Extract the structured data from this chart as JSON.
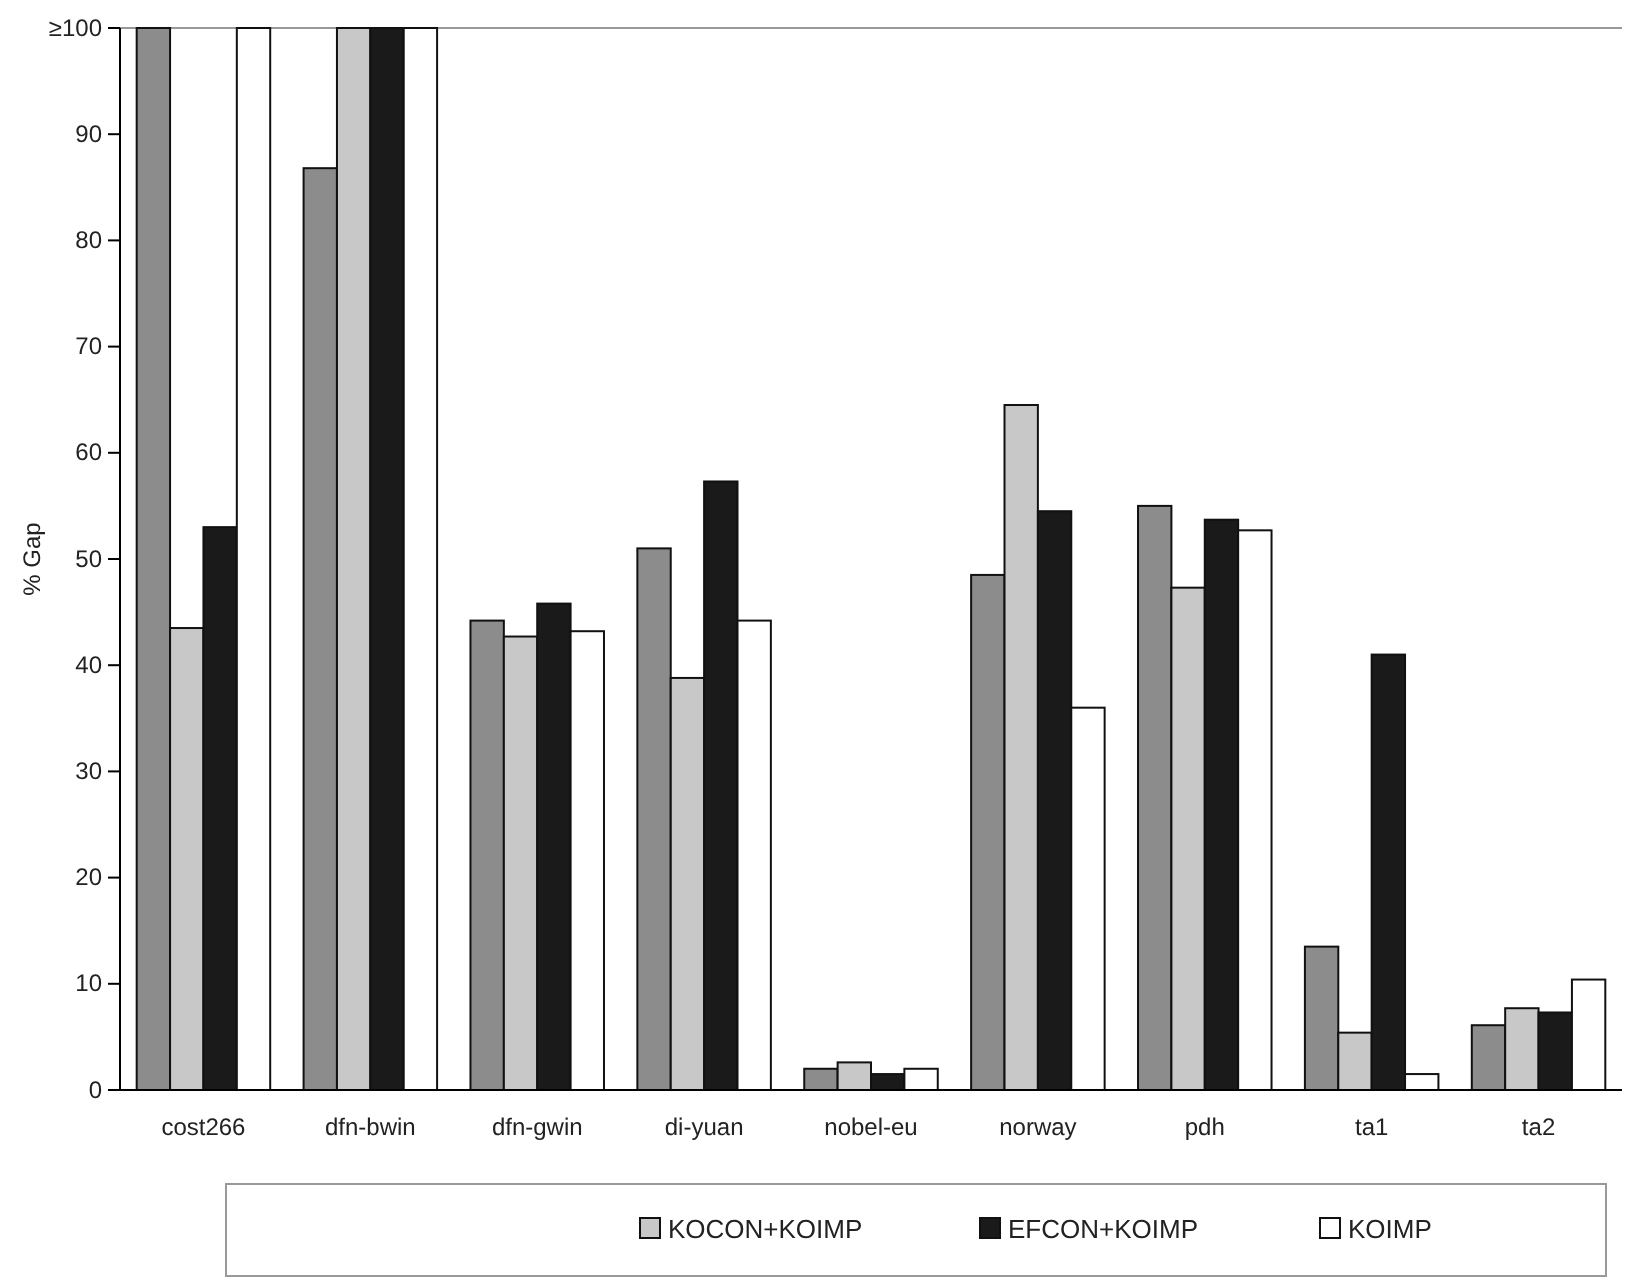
{
  "chart_data": {
    "type": "bar",
    "ylabel": "% Gap",
    "categories": [
      "cost266",
      "dfn-bwin",
      "dfn-gwin",
      "di-yuan",
      "nobel-eu",
      "norway",
      "pdh",
      "ta1",
      "ta2"
    ],
    "series": [
      {
        "color": "#8c8c8c",
        "values": [
          100,
          86.8,
          44.2,
          51,
          2,
          48.5,
          55,
          13.5,
          6.1
        ]
      },
      {
        "name": "KOCON+KOIMP",
        "color": "#c8c8c8",
        "values": [
          43.5,
          100,
          42.7,
          38.8,
          2.6,
          64.5,
          47.3,
          5.4,
          7.7
        ]
      },
      {
        "name": "EFCON+KOIMP",
        "color": "#1a1a1a",
        "values": [
          53,
          100,
          45.8,
          57.3,
          1.5,
          54.5,
          53.7,
          41,
          7.3
        ]
      },
      {
        "name": "KOIMP",
        "color": "#ffffff",
        "values": [
          100,
          100,
          43.2,
          44.2,
          2,
          36,
          52.7,
          1.5,
          10.4
        ]
      }
    ],
    "ylim": [
      0,
      100
    ],
    "yticks": [
      0,
      10,
      20,
      30,
      40,
      50,
      60,
      70,
      80,
      90,
      {
        "value": 100,
        "label": "≥100"
      }
    ],
    "grid": false,
    "legend": "bottom"
  }
}
